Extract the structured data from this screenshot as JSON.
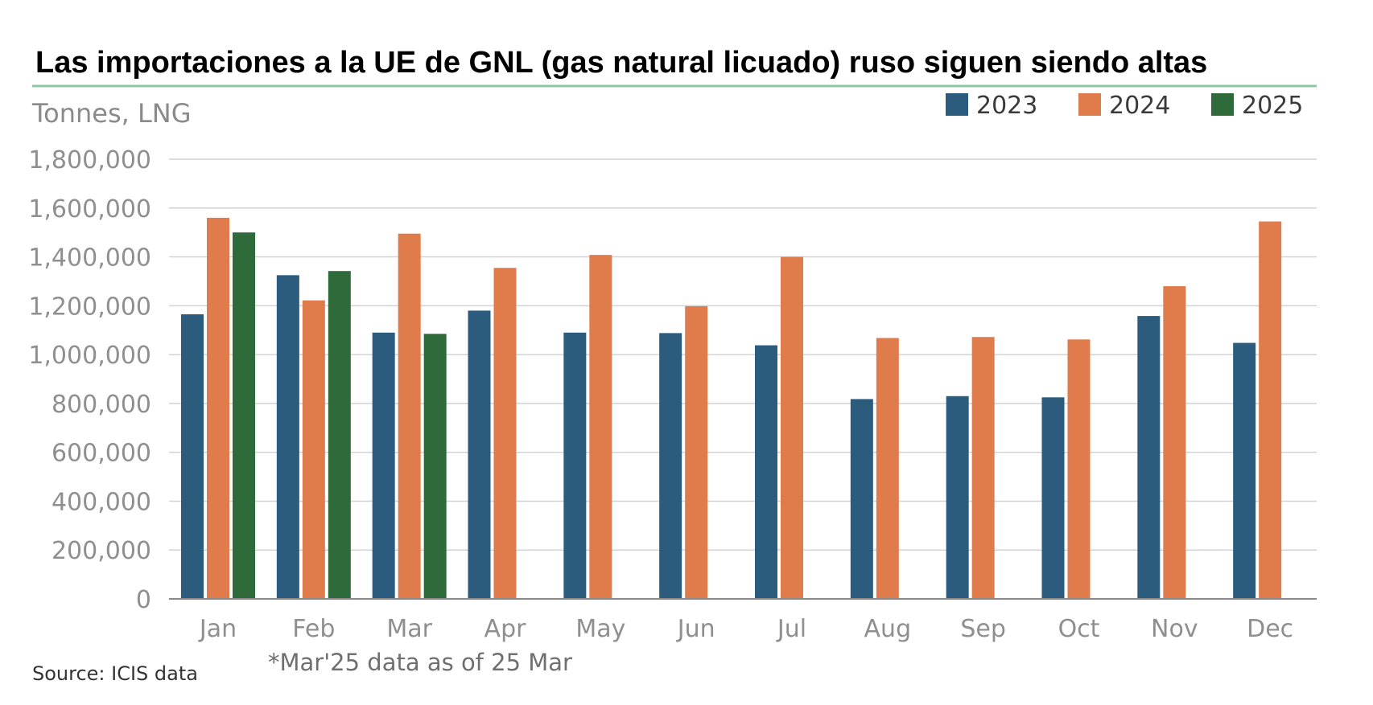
{
  "colors": {
    "2023": "#2b5c7e",
    "2024": "#e07b4b",
    "2025": "#2f6b3a",
    "title_rule": "#8cc8a3",
    "grid": "#d2d2d2",
    "axis": "#8a8a8a"
  },
  "chart_data": {
    "type": "bar",
    "title": "Las importaciones a la UE de GNL (gas natural licuado) ruso siguen siendo altas",
    "ylabel": "Tonnes, LNG",
    "ylim": [
      0,
      1800000
    ],
    "yticks": [
      "0",
      "200,000",
      "400,000",
      "600,000",
      "800,000",
      "1,000,000",
      "1,200,000",
      "1,400,000",
      "1,600,000",
      "1,800,000"
    ],
    "categories": [
      "Jan",
      "Feb",
      "Mar",
      "Apr",
      "May",
      "Jun",
      "Jul",
      "Aug",
      "Sep",
      "Oct",
      "Nov",
      "Dec"
    ],
    "series": [
      {
        "name": "2023",
        "values": [
          1165000,
          1325000,
          1090000,
          1180000,
          1090000,
          1088000,
          1038000,
          818000,
          830000,
          825000,
          1158000,
          1048000
        ]
      },
      {
        "name": "2024",
        "values": [
          1560000,
          1222000,
          1495000,
          1355000,
          1408000,
          1198000,
          1400000,
          1068000,
          1072000,
          1062000,
          1280000,
          1545000
        ]
      },
      {
        "name": "2025",
        "values": [
          1500000,
          1342000,
          1085000,
          null,
          null,
          null,
          null,
          null,
          null,
          null,
          null,
          null
        ]
      }
    ],
    "legend": "top-right",
    "grid": true,
    "annotation": "*Mar'25 data as of 25 Mar",
    "source": "Source: ICIS data"
  }
}
